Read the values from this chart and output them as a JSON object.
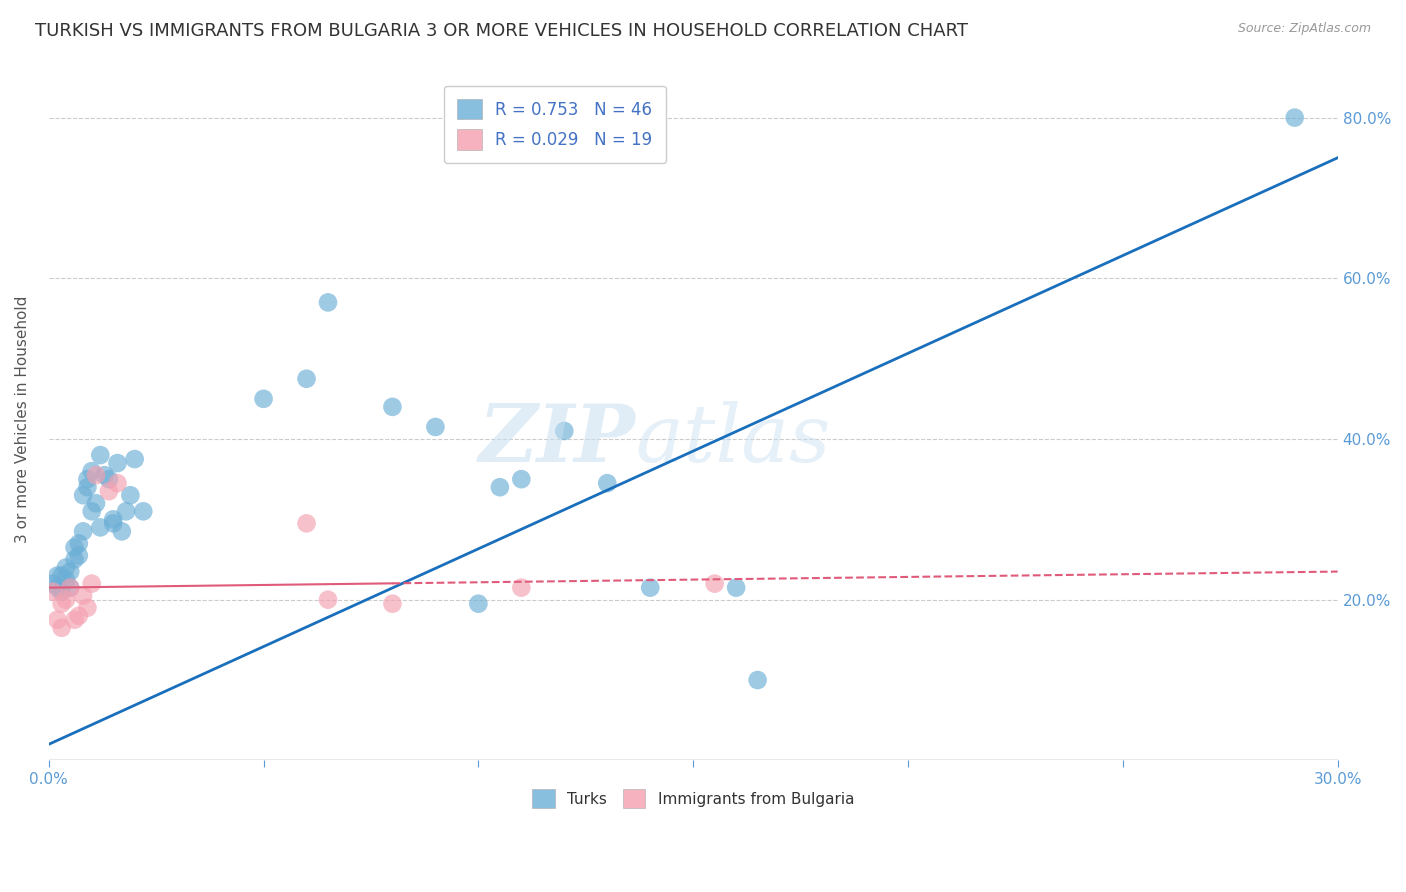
{
  "title": "TURKISH VS IMMIGRANTS FROM BULGARIA 3 OR MORE VEHICLES IN HOUSEHOLD CORRELATION CHART",
  "source": "Source: ZipAtlas.com",
  "ylabel": "3 or more Vehicles in Household",
  "xlim": [
    0.0,
    0.3
  ],
  "ylim": [
    0.0,
    0.85
  ],
  "xticks": [
    0.0,
    0.05,
    0.1,
    0.15,
    0.2,
    0.25,
    0.3
  ],
  "xticklabels": [
    "0.0%",
    "",
    "",
    "",
    "",
    "",
    "30.0%"
  ],
  "yticks": [
    0.0,
    0.2,
    0.4,
    0.6,
    0.8
  ],
  "yticklabels": [
    "",
    "20.0%",
    "40.0%",
    "60.0%",
    "80.0%"
  ],
  "legend1_label": "R = 0.753   N = 46",
  "legend2_label": "R = 0.029   N = 19",
  "scatter_turks_color": "#6baed6",
  "scatter_bulgaria_color": "#f4a0b0",
  "line_turks_color": "#1a6fbd",
  "line_bulgaria_color": "#e05a7a",
  "turks_line_x0": 0.0,
  "turks_line_y0": 0.02,
  "turks_line_x1": 0.3,
  "turks_line_y1": 0.75,
  "bulgaria_line_x0": 0.0,
  "bulgaria_line_y0": 0.215,
  "bulgaria_line_x1": 0.3,
  "bulgaria_line_y1": 0.235,
  "turks_x": [
    0.001,
    0.002,
    0.002,
    0.003,
    0.003,
    0.004,
    0.004,
    0.005,
    0.005,
    0.006,
    0.006,
    0.007,
    0.007,
    0.008,
    0.008,
    0.009,
    0.009,
    0.01,
    0.01,
    0.011,
    0.012,
    0.012,
    0.013,
    0.014,
    0.015,
    0.015,
    0.016,
    0.017,
    0.018,
    0.019,
    0.02,
    0.022,
    0.05,
    0.06,
    0.065,
    0.08,
    0.09,
    0.1,
    0.105,
    0.11,
    0.12,
    0.13,
    0.14,
    0.16,
    0.165,
    0.29
  ],
  "turks_y": [
    0.22,
    0.215,
    0.23,
    0.23,
    0.21,
    0.225,
    0.24,
    0.215,
    0.235,
    0.25,
    0.265,
    0.27,
    0.255,
    0.285,
    0.33,
    0.35,
    0.34,
    0.36,
    0.31,
    0.32,
    0.29,
    0.38,
    0.355,
    0.35,
    0.3,
    0.295,
    0.37,
    0.285,
    0.31,
    0.33,
    0.375,
    0.31,
    0.45,
    0.475,
    0.57,
    0.44,
    0.415,
    0.195,
    0.34,
    0.35,
    0.41,
    0.345,
    0.215,
    0.215,
    0.1,
    0.8
  ],
  "bulgaria_x": [
    0.001,
    0.002,
    0.003,
    0.003,
    0.004,
    0.005,
    0.006,
    0.007,
    0.008,
    0.009,
    0.01,
    0.011,
    0.014,
    0.016,
    0.06,
    0.065,
    0.08,
    0.11,
    0.155
  ],
  "bulgaria_y": [
    0.21,
    0.175,
    0.195,
    0.165,
    0.2,
    0.215,
    0.175,
    0.18,
    0.205,
    0.19,
    0.22,
    0.355,
    0.335,
    0.345,
    0.295,
    0.2,
    0.195,
    0.215,
    0.22
  ],
  "title_fontsize": 13,
  "axis_tick_fontsize": 11,
  "ylabel_fontsize": 11,
  "legend_fontsize": 12
}
